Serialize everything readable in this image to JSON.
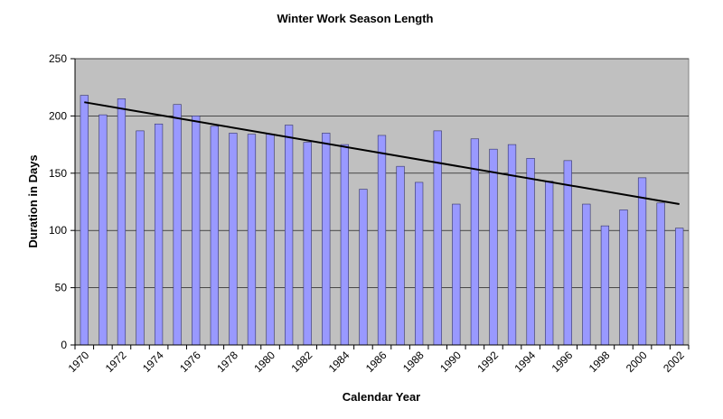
{
  "chart_data": {
    "type": "bar",
    "title": "Winter Work Season Length",
    "xlabel": "Calendar Year",
    "ylabel": "Duration in Days",
    "ylim": [
      0,
      250
    ],
    "yticks": [
      0,
      50,
      100,
      150,
      200,
      250
    ],
    "grid": true,
    "legend": "none",
    "x": [
      1970,
      1971,
      1972,
      1973,
      1974,
      1975,
      1976,
      1977,
      1978,
      1979,
      1980,
      1981,
      1982,
      1983,
      1984,
      1985,
      1986,
      1987,
      1988,
      1989,
      1990,
      1991,
      1992,
      1993,
      1994,
      1995,
      1996,
      1997,
      1998,
      1999,
      2000,
      2001,
      2002
    ],
    "x_tick_labels": [
      "1970",
      "1972",
      "1974",
      "1976",
      "1978",
      "1980",
      "1982",
      "1984",
      "1986",
      "1988",
      "1990",
      "1992",
      "1994",
      "1996",
      "1998",
      "2000",
      "2002"
    ],
    "values": [
      218,
      201,
      215,
      187,
      193,
      210,
      200,
      191,
      185,
      184,
      184,
      192,
      177,
      185,
      175,
      136,
      183,
      156,
      142,
      187,
      123,
      180,
      171,
      175,
      163,
      143,
      161,
      123,
      104,
      118,
      146,
      124,
      102
    ],
    "trendline": {
      "type": "linear",
      "start": [
        1970,
        212
      ],
      "end": [
        2002,
        123
      ]
    },
    "colors": {
      "bar_fill": "#9999ff",
      "bar_stroke": "#333366",
      "plot_background": "#c0c0c0",
      "gridline": "#000000",
      "trendline": "#000000"
    }
  }
}
